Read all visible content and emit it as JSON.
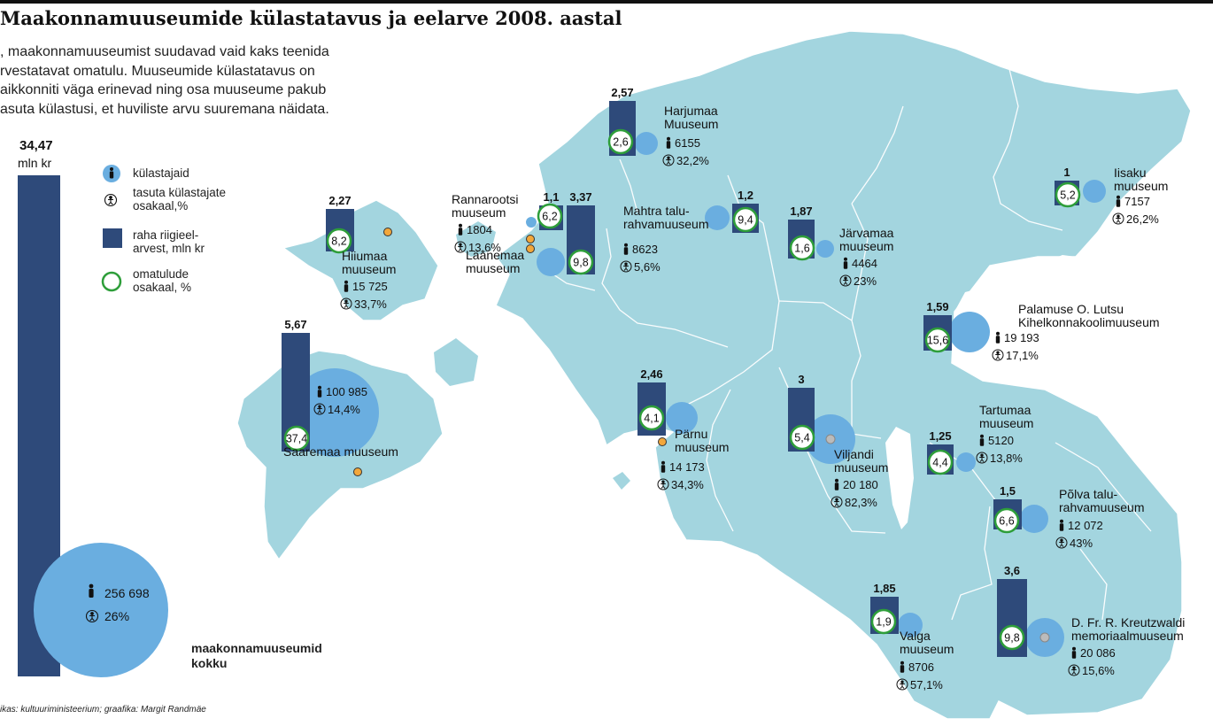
{
  "title": "Maakonnamuuseumide külastatavus ja eelarve 2008. aastal",
  "intro_lines": [
    ", maakonnamuuseumist suudavad vaid kaks teenida",
    "rvestatavat omatulu. Muuseumide külastatavus on",
    "aikkonniti väga erinevad ning osa muuseume pakub",
    "asuta külastusi, et huviliste arvu suuremana näidata."
  ],
  "source": "ikas: kultuuriministeerium; graafika: Margit Randmäe",
  "legend": {
    "visitors": "külastajaid",
    "free_share_1": "tasuta külastajate",
    "free_share_2": "osakaal,%",
    "budget_1": "raha riigieel-",
    "budget_2": "arvest, mln kr",
    "own_income_1": "omatulude",
    "own_income_2": "osakaal, %"
  },
  "colors": {
    "land": "#a3d5df",
    "border": "#ffffff",
    "bar": "#2e4a7a",
    "visitor_circle": "#6aaee0",
    "own_income_ring": "#2e9e3a",
    "location_dot": "#f2a73b"
  },
  "total": {
    "budget": "34,47",
    "unit": "mln kr",
    "visitors": "256 698",
    "free_share": "26%",
    "label_1": "maakonnamuuseumid",
    "label_2": "kokku"
  },
  "museums": [
    {
      "id": "harjumaa",
      "name_lines": [
        "Harjumaa",
        "Muuseum"
      ],
      "budget": "2,57",
      "own_income": "2,6",
      "visitors": "6155",
      "free_share": "32,2%"
    },
    {
      "id": "iisaku",
      "name_lines": [
        "Iisaku",
        "muuseum"
      ],
      "budget": "1",
      "own_income": "5,2",
      "visitors": "7157",
      "free_share": "26,2%"
    },
    {
      "id": "rannarootsi",
      "name_lines": [
        "Rannarootsi",
        "muuseum"
      ],
      "budget": "1,1",
      "own_income": "6,2",
      "visitors": "1804",
      "free_share": "13,6%"
    },
    {
      "id": "laanemaa",
      "name_lines": [
        "Läänemaa",
        "muuseum"
      ],
      "budget": "3,37",
      "own_income": "9,8",
      "visitors": "",
      "free_share": ""
    },
    {
      "id": "mahtra",
      "name_lines": [
        "Mahtra talu-",
        "rahvamuuseum"
      ],
      "budget": "1,2",
      "own_income": "9,4",
      "visitors": "8623",
      "free_share": "5,6%"
    },
    {
      "id": "jarvamaa",
      "name_lines": [
        "Järvamaa",
        "muuseum"
      ],
      "budget": "1,87",
      "own_income": "1,6",
      "visitors": "4464",
      "free_share": "23%"
    },
    {
      "id": "hiiumaa",
      "name_lines": [
        "Hiiumaa",
        "muuseum"
      ],
      "budget": "2,27",
      "own_income": "8,2",
      "visitors": "15 725",
      "free_share": "33,7%"
    },
    {
      "id": "saaremaa",
      "name_lines": [
        "Saaremaa muuseum"
      ],
      "budget": "5,67",
      "own_income": "37,4",
      "visitors": "100 985",
      "free_share": "14,4%"
    },
    {
      "id": "palamuse",
      "name_lines": [
        "Palamuse O. Lutsu",
        "Kihelkonnakoolimuuseum"
      ],
      "budget": "1,59",
      "own_income": "15,6",
      "visitors": "19 193",
      "free_share": "17,1%"
    },
    {
      "id": "parnu",
      "name_lines": [
        "Pärnu",
        "muuseum"
      ],
      "budget": "2,46",
      "own_income": "4,1",
      "visitors": "14 173",
      "free_share": "34,3%"
    },
    {
      "id": "viljandi",
      "name_lines": [
        "Viljandi",
        "muuseum"
      ],
      "budget": "3",
      "own_income": "5,4",
      "visitors": "20 180",
      "free_share": "82,3%"
    },
    {
      "id": "tartumaa",
      "name_lines": [
        "Tartumaa",
        "muuseum"
      ],
      "budget": "1,25",
      "own_income": "4,4",
      "visitors": "5120",
      "free_share": "13,8%"
    },
    {
      "id": "polva",
      "name_lines": [
        "Põlva talu-",
        "rahvamuuseum"
      ],
      "budget": "1,5",
      "own_income": "6,6",
      "visitors": "12 072",
      "free_share": "43%"
    },
    {
      "id": "valga",
      "name_lines": [
        "Valga",
        "muuseum"
      ],
      "budget": "1,85",
      "own_income": "1,9",
      "visitors": "8706",
      "free_share": "57,1%"
    },
    {
      "id": "kreutzwaldi",
      "name_lines": [
        "D. Fr. R. Kreutzwaldi",
        "memoriaalmuuseum"
      ],
      "budget": "3,6",
      "own_income": "9,8",
      "visitors": "20 086",
      "free_share": "15,6%"
    }
  ]
}
